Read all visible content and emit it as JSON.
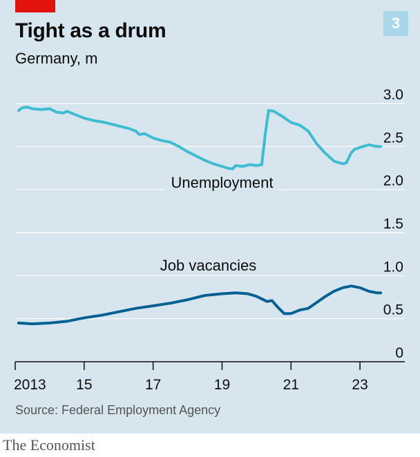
{
  "header": {
    "title": "Tight as a drum",
    "subtitle": "Germany, m",
    "chart_number": "3"
  },
  "footer": {
    "source": "Source: Federal Employment Agency",
    "brand": "The Economist"
  },
  "colors": {
    "background": "#d7e6ee",
    "unemployment": "#3ebcd2",
    "vacancies": "#006092",
    "gridline": "#ffffff",
    "accent_red": "#e3120b"
  },
  "chart_data": {
    "type": "line",
    "title": "Tight as a drum",
    "subtitle": "Germany, m",
    "xlabel": "",
    "ylabel": "",
    "xlim": [
      2013.0,
      2024.3
    ],
    "ylim": [
      0,
      3.0
    ],
    "y_ticks": [
      0,
      0.5,
      1.0,
      1.5,
      2.0,
      2.5,
      3.0
    ],
    "y_tick_labels": [
      "0",
      "0.5",
      "1.0",
      "1.5",
      "2.0",
      "2.5",
      "3.0"
    ],
    "x_ticks": [
      2013,
      2015,
      2017,
      2019,
      2021,
      2023
    ],
    "x_tick_labels": [
      "2013",
      "15",
      "17",
      "19",
      "21",
      "23"
    ],
    "grid": true,
    "series": [
      {
        "name": "Unemployment",
        "points": [
          [
            2013.1,
            2.92
          ],
          [
            2013.2,
            2.95
          ],
          [
            2013.35,
            2.96
          ],
          [
            2013.5,
            2.94
          ],
          [
            2013.75,
            2.93
          ],
          [
            2014.0,
            2.94
          ],
          [
            2014.2,
            2.9
          ],
          [
            2014.4,
            2.89
          ],
          [
            2014.5,
            2.91
          ],
          [
            2014.75,
            2.87
          ],
          [
            2015.0,
            2.83
          ],
          [
            2015.3,
            2.8
          ],
          [
            2015.6,
            2.78
          ],
          [
            2016.0,
            2.74
          ],
          [
            2016.3,
            2.71
          ],
          [
            2016.5,
            2.68
          ],
          [
            2016.6,
            2.64
          ],
          [
            2016.75,
            2.65
          ],
          [
            2017.0,
            2.6
          ],
          [
            2017.25,
            2.57
          ],
          [
            2017.5,
            2.55
          ],
          [
            2017.75,
            2.5
          ],
          [
            2018.0,
            2.44
          ],
          [
            2018.25,
            2.39
          ],
          [
            2018.5,
            2.34
          ],
          [
            2018.75,
            2.3
          ],
          [
            2019.0,
            2.27
          ],
          [
            2019.15,
            2.25
          ],
          [
            2019.3,
            2.24
          ],
          [
            2019.4,
            2.28
          ],
          [
            2019.6,
            2.27
          ],
          [
            2019.8,
            2.29
          ],
          [
            2020.0,
            2.28
          ],
          [
            2020.15,
            2.29
          ],
          [
            2020.25,
            2.64
          ],
          [
            2020.35,
            2.92
          ],
          [
            2020.5,
            2.91
          ],
          [
            2020.75,
            2.85
          ],
          [
            2021.0,
            2.78
          ],
          [
            2021.25,
            2.75
          ],
          [
            2021.5,
            2.68
          ],
          [
            2021.75,
            2.53
          ],
          [
            2022.0,
            2.42
          ],
          [
            2022.25,
            2.33
          ],
          [
            2022.5,
            2.3
          ],
          [
            2022.6,
            2.31
          ],
          [
            2022.75,
            2.43
          ],
          [
            2022.85,
            2.47
          ],
          [
            2023.0,
            2.49
          ],
          [
            2023.25,
            2.52
          ],
          [
            2023.5,
            2.5
          ],
          [
            2023.6,
            2.5
          ]
        ]
      },
      {
        "name": "Job vacancies",
        "points": [
          [
            2013.1,
            0.45
          ],
          [
            2013.5,
            0.44
          ],
          [
            2014.0,
            0.45
          ],
          [
            2014.5,
            0.47
          ],
          [
            2015.0,
            0.51
          ],
          [
            2015.5,
            0.54
          ],
          [
            2016.0,
            0.58
          ],
          [
            2016.5,
            0.62
          ],
          [
            2017.0,
            0.65
          ],
          [
            2017.5,
            0.68
          ],
          [
            2018.0,
            0.72
          ],
          [
            2018.5,
            0.77
          ],
          [
            2019.0,
            0.79
          ],
          [
            2019.4,
            0.8
          ],
          [
            2019.75,
            0.79
          ],
          [
            2020.0,
            0.76
          ],
          [
            2020.2,
            0.72
          ],
          [
            2020.3,
            0.7
          ],
          [
            2020.45,
            0.71
          ],
          [
            2020.6,
            0.64
          ],
          [
            2020.8,
            0.56
          ],
          [
            2021.0,
            0.56
          ],
          [
            2021.25,
            0.6
          ],
          [
            2021.5,
            0.62
          ],
          [
            2021.75,
            0.69
          ],
          [
            2022.0,
            0.76
          ],
          [
            2022.25,
            0.82
          ],
          [
            2022.5,
            0.86
          ],
          [
            2022.75,
            0.88
          ],
          [
            2023.0,
            0.86
          ],
          [
            2023.25,
            0.82
          ],
          [
            2023.5,
            0.8
          ],
          [
            2023.6,
            0.8
          ]
        ]
      }
    ],
    "annotations": [
      {
        "text": "Unemployment",
        "series": "Unemployment",
        "x": 2019.0,
        "y": 2.02
      },
      {
        "text": "Job vacancies",
        "series": "Job vacancies",
        "x": 2018.6,
        "y": 1.06
      }
    ]
  }
}
